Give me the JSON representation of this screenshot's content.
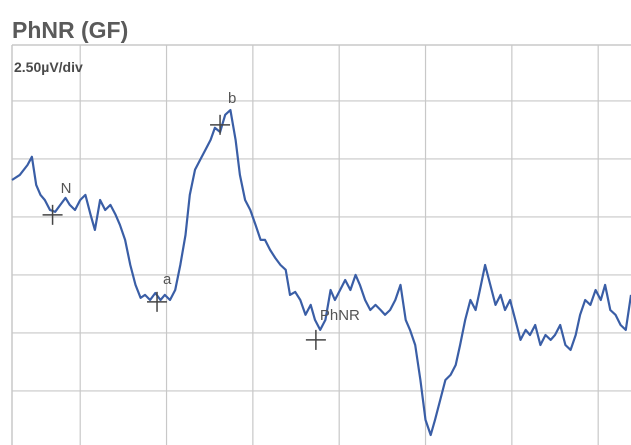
{
  "chart_data": {
    "type": "line",
    "title": "PhNR (GF)",
    "subtitle": "2.50µV/div",
    "xlim": [
      -0.79,
      6.38
    ],
    "ylim": [
      -7.33,
      9.91
    ],
    "xgrid": [
      0,
      1,
      2,
      3,
      4,
      5,
      6
    ],
    "ygrid": [
      7.5,
      5,
      2.5,
      0,
      -2.5,
      -5
    ],
    "grid_color": "#c8c8c8",
    "series": [
      {
        "color": "#3a5ea6",
        "x": [
          -0.79,
          -0.7,
          -0.61,
          -0.56,
          -0.51,
          -0.46,
          -0.41,
          -0.35,
          -0.29,
          -0.23,
          -0.17,
          -0.12,
          -0.06,
          0,
          0.06,
          0.12,
          0.17,
          0.23,
          0.29,
          0.35,
          0.41,
          0.46,
          0.52,
          0.58,
          0.64,
          0.7,
          0.75,
          0.81,
          0.87,
          0.93,
          0.98,
          1.04,
          1.1,
          1.16,
          1.22,
          1.27,
          1.33,
          1.39,
          1.45,
          1.51,
          1.56,
          1.62,
          1.68,
          1.74,
          1.8,
          1.85,
          1.91,
          1.97,
          2.03,
          2.09,
          2.14,
          2.2,
          2.26,
          2.32,
          2.38,
          2.43,
          2.49,
          2.55,
          2.61,
          2.67,
          2.72,
          2.78,
          2.84,
          2.9,
          2.95,
          3.01,
          3.07,
          3.13,
          3.19,
          3.24,
          3.3,
          3.36,
          3.42,
          3.48,
          3.53,
          3.59,
          3.65,
          3.71,
          3.77,
          3.82,
          3.88,
          3.94,
          4.0,
          4.06,
          4.11,
          4.17,
          4.23,
          4.29,
          4.35,
          4.4,
          4.46,
          4.52,
          4.58,
          4.63,
          4.69,
          4.75,
          4.81,
          4.87,
          4.92,
          4.98,
          5.04,
          5.1,
          5.16,
          5.21,
          5.27,
          5.33,
          5.39,
          5.45,
          5.5,
          5.56,
          5.62,
          5.68,
          5.74,
          5.79,
          5.85,
          5.91,
          5.97,
          6.03,
          6.08,
          6.14,
          6.2,
          6.26,
          6.32,
          6.38
        ],
        "values": [
          4.09,
          4.31,
          4.74,
          5.09,
          3.88,
          3.45,
          3.23,
          2.8,
          2.72,
          3.02,
          3.32,
          3.02,
          2.8,
          3.23,
          3.45,
          2.59,
          1.94,
          3.23,
          2.8,
          3.02,
          2.59,
          2.16,
          1.51,
          0.43,
          -0.43,
          -0.99,
          -0.86,
          -1.08,
          -0.78,
          -1.08,
          -0.86,
          -1.08,
          -0.65,
          0.43,
          1.72,
          3.45,
          4.53,
          4.96,
          5.39,
          5.82,
          6.34,
          6.16,
          6.9,
          7.11,
          5.82,
          4.31,
          3.23,
          2.8,
          2.16,
          1.51,
          1.51,
          1.08,
          0.73,
          0.43,
          0.22,
          -0.86,
          -0.73,
          -1.08,
          -1.72,
          -1.29,
          -1.94,
          -2.37,
          -1.94,
          -0.65,
          -1.08,
          -0.65,
          -0.22,
          -0.65,
          0,
          -0.43,
          -1.08,
          -1.51,
          -1.29,
          -1.51,
          -1.72,
          -1.51,
          -1.08,
          -0.43,
          -1.94,
          -2.37,
          -3.02,
          -4.53,
          -6.25,
          -6.9,
          -6.25,
          -5.39,
          -4.53,
          -4.31,
          -3.88,
          -3.02,
          -1.94,
          -1.08,
          -1.51,
          -0.65,
          0.43,
          -0.43,
          -1.29,
          -0.86,
          -1.51,
          -1.08,
          -1.94,
          -2.8,
          -2.37,
          -2.59,
          -2.16,
          -3.02,
          -2.59,
          -2.8,
          -2.59,
          -2.16,
          -3.02,
          -3.23,
          -2.59,
          -1.72,
          -1.08,
          -1.29,
          -0.65,
          -1.08,
          -0.43,
          -1.51,
          -1.72,
          -2.16,
          -2.37,
          -0.86
        ]
      }
    ],
    "markers": [
      {
        "label": "N",
        "x": -0.32,
        "y": 2.59
      },
      {
        "label": "a",
        "x": 0.89,
        "y": -1.16
      },
      {
        "label": "b",
        "x": 1.62,
        "y": 6.47
      },
      {
        "label": "PhNR",
        "x": 2.73,
        "y": -2.8
      }
    ]
  }
}
